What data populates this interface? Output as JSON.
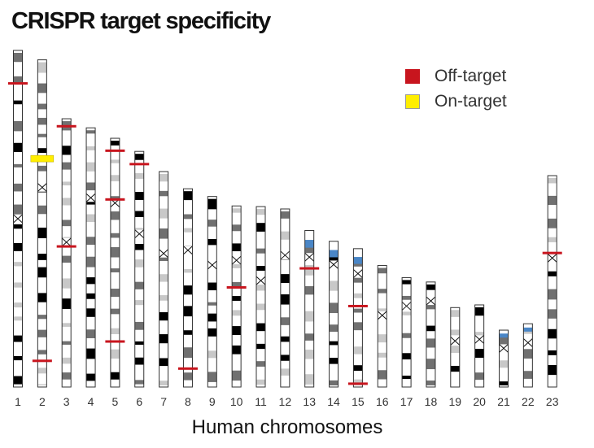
{
  "title": "CRISPR target specificity",
  "x_axis_label": "Human chromosomes",
  "legend": [
    {
      "label": "Off-target",
      "color": "#c8151e"
    },
    {
      "label": "On-target",
      "color": "#ffee00"
    }
  ],
  "colors": {
    "off_target": "#c8151e",
    "on_target": "#ffee00",
    "satellite": "#4a86c6",
    "band_dark": "#000000",
    "band_mid": "#707070",
    "band_light": "#c8c8c8",
    "outline": "#333333"
  },
  "chromosomes": [
    {
      "label": "1",
      "length": 1.0,
      "centromere": 0.5
    },
    {
      "label": "2",
      "length": 0.972,
      "centromere": 0.39
    },
    {
      "label": "3",
      "length": 0.797,
      "centromere": 0.46
    },
    {
      "label": "4",
      "length": 0.77,
      "centromere": 0.27
    },
    {
      "label": "5",
      "length": 0.739,
      "centromere": 0.26
    },
    {
      "label": "6",
      "length": 0.7,
      "centromere": 0.35
    },
    {
      "label": "7",
      "length": 0.64,
      "centromere": 0.38
    },
    {
      "label": "8",
      "length": 0.589,
      "centromere": 0.31
    },
    {
      "label": "9",
      "length": 0.566,
      "centromere": 0.36
    },
    {
      "label": "10",
      "length": 0.538,
      "centromere": 0.3
    },
    {
      "label": "11",
      "length": 0.536,
      "centromere": 0.41
    },
    {
      "label": "12",
      "length": 0.529,
      "centromere": 0.26
    },
    {
      "label": "13",
      "length": 0.465,
      "centromere": 0.17,
      "satellite": true
    },
    {
      "label": "14",
      "length": 0.433,
      "centromere": 0.16,
      "satellite": true
    },
    {
      "label": "15",
      "length": 0.411,
      "centromere": 0.18,
      "satellite": true
    },
    {
      "label": "16",
      "length": 0.361,
      "centromere": 0.41
    },
    {
      "label": "17",
      "length": 0.325,
      "centromere": 0.26
    },
    {
      "label": "18",
      "length": 0.312,
      "centromere": 0.18
    },
    {
      "label": "19",
      "length": 0.236,
      "centromere": 0.42
    },
    {
      "label": "20",
      "length": 0.244,
      "centromere": 0.42
    },
    {
      "label": "21",
      "length": 0.169,
      "centromere": 0.32,
      "satellite": true
    },
    {
      "label": "22",
      "length": 0.188,
      "centromere": 0.3,
      "satellite": true
    },
    {
      "label": "23",
      "length": 0.628,
      "centromere": 0.39
    }
  ],
  "targets": [
    {
      "chromosome": "1",
      "type": "off",
      "position": 0.098
    },
    {
      "chromosome": "2",
      "type": "on",
      "position": 0.302
    },
    {
      "chromosome": "2",
      "type": "off",
      "position": 0.92
    },
    {
      "chromosome": "3",
      "type": "off",
      "position": 0.028
    },
    {
      "chromosome": "3",
      "type": "off",
      "position": 0.476
    },
    {
      "chromosome": "5",
      "type": "off",
      "position": 0.05
    },
    {
      "chromosome": "5",
      "type": "off",
      "position": 0.246
    },
    {
      "chromosome": "5",
      "type": "off",
      "position": 0.817
    },
    {
      "chromosome": "6",
      "type": "off",
      "position": 0.054
    },
    {
      "chromosome": "8",
      "type": "off",
      "position": 0.907
    },
    {
      "chromosome": "10",
      "type": "off",
      "position": 0.45
    },
    {
      "chromosome": "13",
      "type": "off",
      "position": 0.242
    },
    {
      "chromosome": "15",
      "type": "off",
      "position": 0.415
    },
    {
      "chromosome": "15",
      "type": "off",
      "position": 0.976
    },
    {
      "chromosome": "23",
      "type": "off",
      "position": 0.366
    }
  ]
}
